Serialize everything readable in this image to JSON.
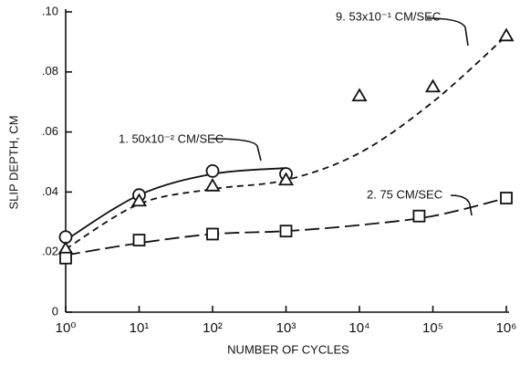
{
  "chart_data": {
    "type": "scatter",
    "xlabel": "NUMBER OF CYCLES",
    "ylabel": "SLIP DEPTH, CM",
    "xscale": "log",
    "xlim": [
      1,
      1000000
    ],
    "xticks": [
      {
        "value": 1,
        "label": "10⁰"
      },
      {
        "value": 10,
        "label": "10¹"
      },
      {
        "value": 100,
        "label": "10²"
      },
      {
        "value": 1000,
        "label": "10³"
      },
      {
        "value": 10000,
        "label": "10⁴"
      },
      {
        "value": 100000,
        "label": "10⁵"
      },
      {
        "value": 1000000,
        "label": "10⁶"
      }
    ],
    "ylim": [
      0,
      0.1
    ],
    "yticks": [
      0,
      {
        "value": 0.02,
        "label": ".02"
      },
      {
        "value": 0.04,
        "label": ".04"
      },
      {
        "value": 0.06,
        "label": ".06"
      },
      {
        "value": 0.08,
        "label": ".08"
      },
      {
        "value": 0.1,
        "label": ".10"
      }
    ],
    "series": [
      {
        "name": "1. 50x10⁻² CM/SEC",
        "marker": "circle",
        "color": "#111",
        "dash": "solid",
        "x": [
          1,
          10,
          100,
          1000
        ],
        "values": [
          0.025,
          0.039,
          0.047,
          0.046
        ],
        "curve": {
          "x": [
            1,
            10,
            100,
            1000
          ],
          "y": [
            0.024,
            0.039,
            0.046,
            0.048
          ]
        }
      },
      {
        "name": "9. 53x10⁻¹ CM/SEC",
        "marker": "triangle",
        "color": "#111",
        "dash": "dashed",
        "x": [
          1,
          10,
          100,
          1000,
          10000,
          100000,
          1000000
        ],
        "values": [
          0.021,
          0.037,
          0.042,
          0.044,
          0.072,
          0.075,
          0.092
        ],
        "curve": {
          "x": [
            1,
            10,
            100,
            1000,
            10000,
            100000,
            1000000
          ],
          "y": [
            0.021,
            0.036,
            0.041,
            0.044,
            0.053,
            0.07,
            0.092
          ]
        }
      },
      {
        "name": "2. 75 CM/SEC",
        "marker": "square",
        "color": "#111",
        "dash": "long-dashed",
        "x": [
          1,
          10,
          100,
          1000,
          65000,
          1000000
        ],
        "values": [
          0.018,
          0.024,
          0.026,
          0.027,
          0.032,
          0.038
        ],
        "curve": {
          "x": [
            1,
            10,
            100,
            1000,
            10000,
            100000,
            1000000
          ],
          "y": [
            0.019,
            0.023,
            0.026,
            0.027,
            0.029,
            0.032,
            0.038
          ]
        }
      }
    ]
  }
}
